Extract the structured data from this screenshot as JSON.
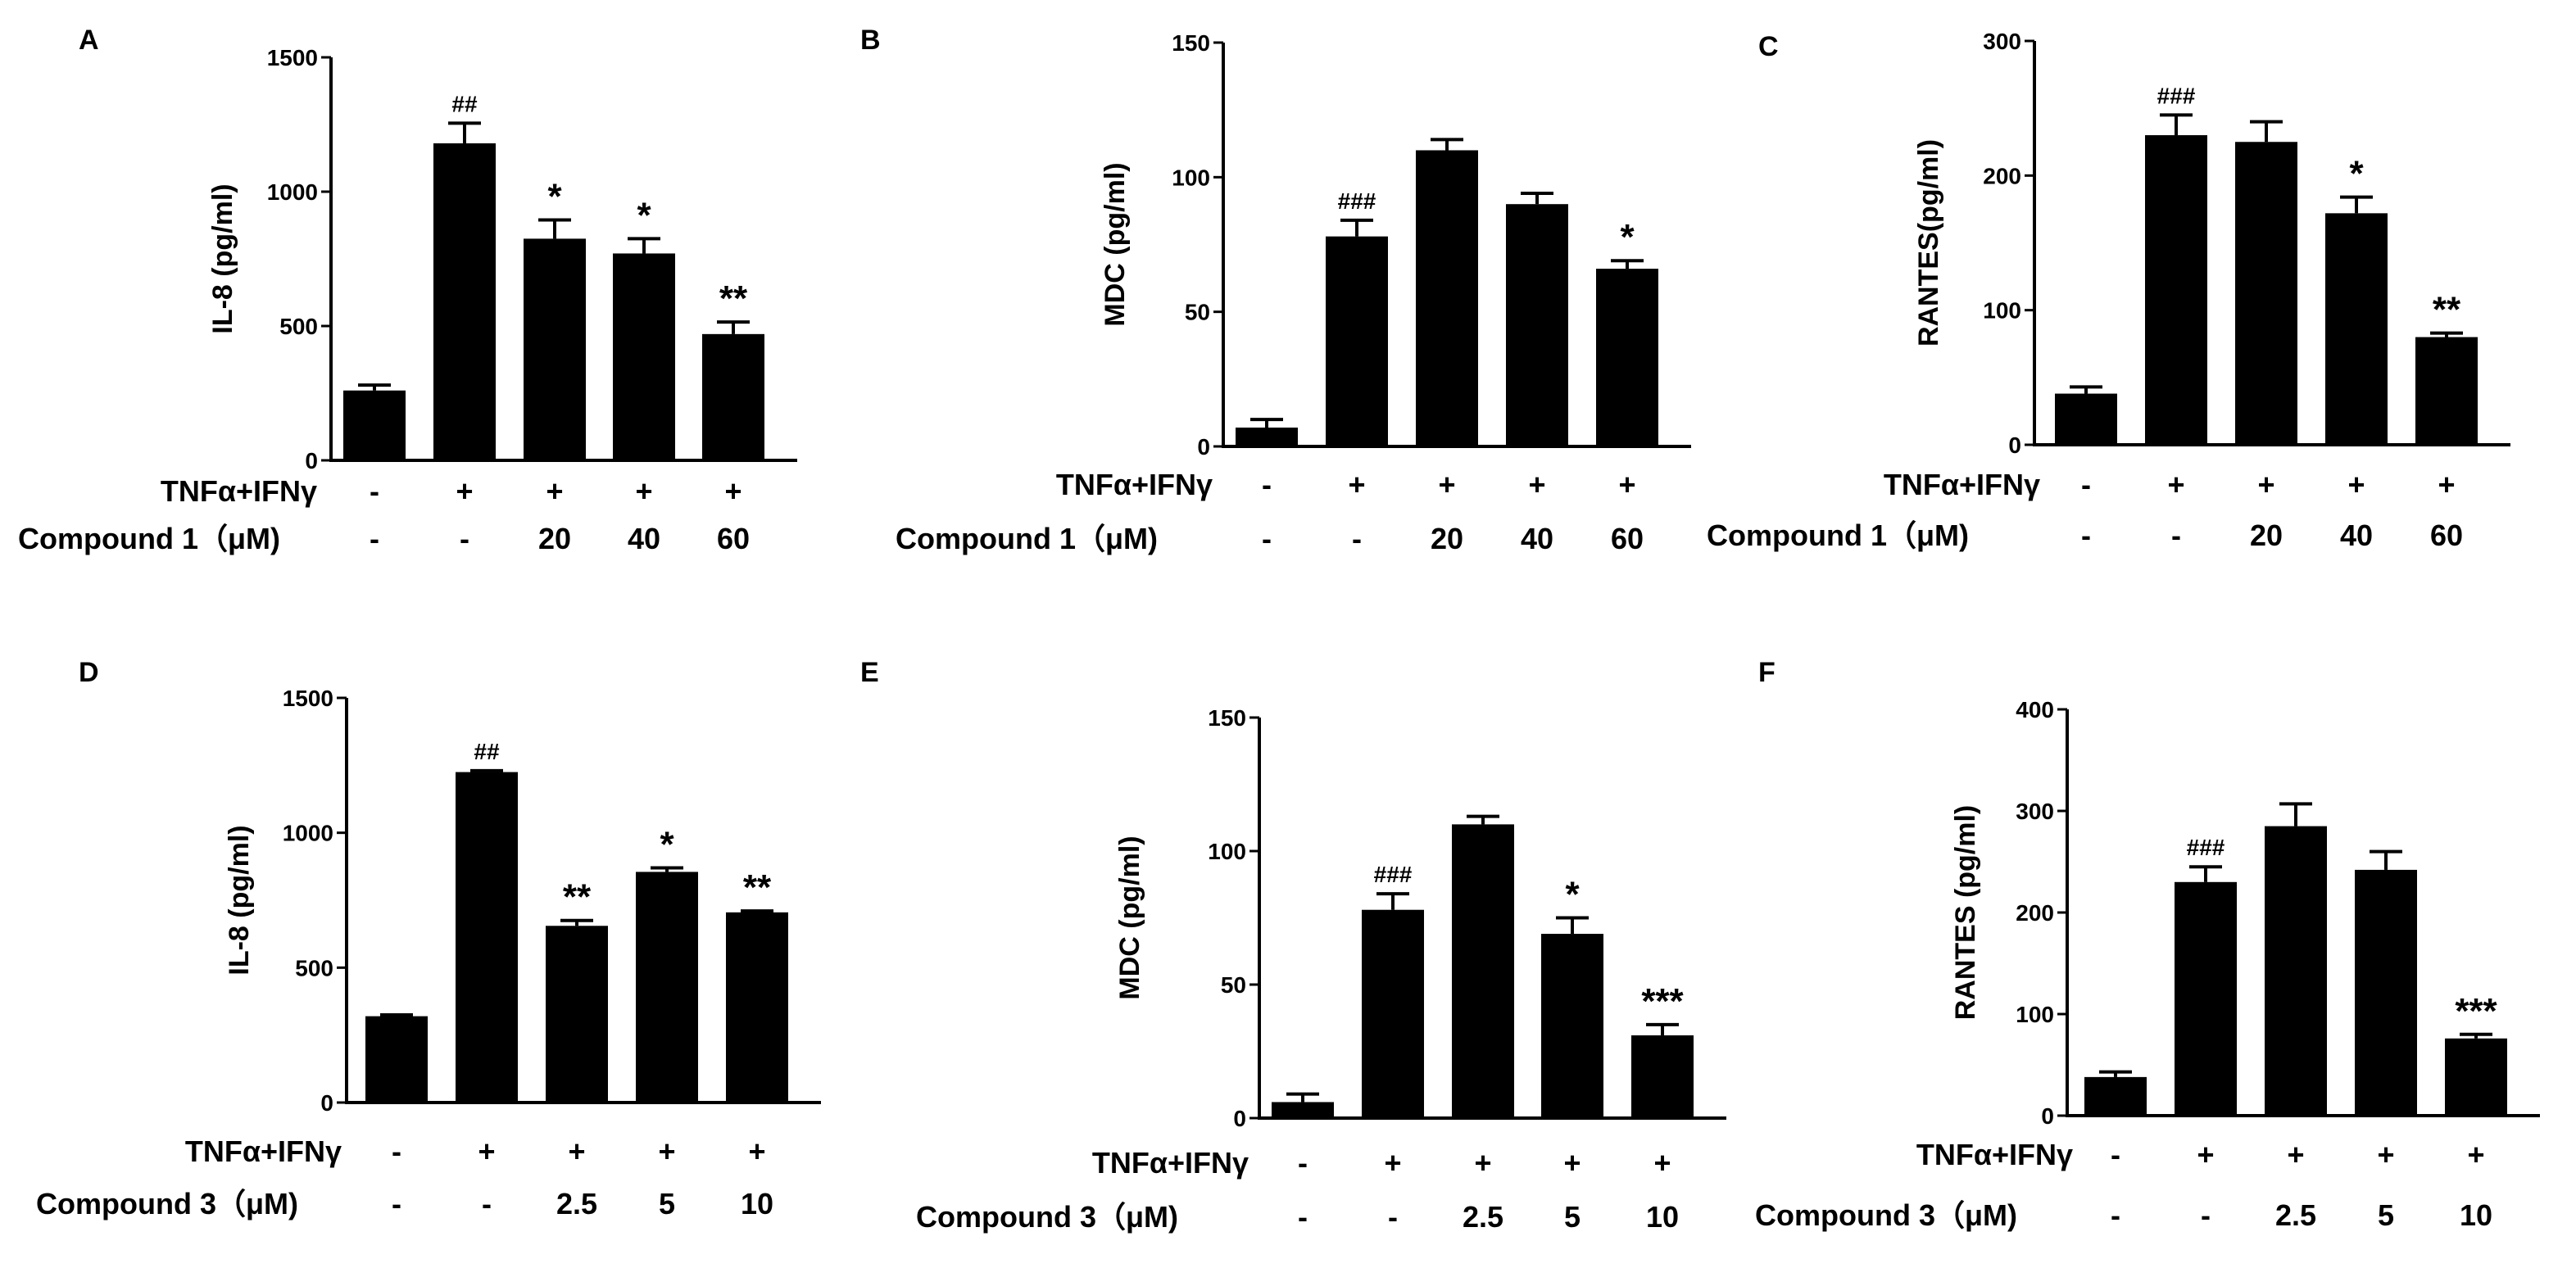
{
  "chart_data": [
    {
      "type": "bar",
      "panel": "A",
      "ylabel": "IL-8 (pg/ml)",
      "ylim": [
        0,
        1500
      ],
      "yticks": [
        "0",
        "500",
        "1000",
        "1500"
      ],
      "values": [
        260,
        1180,
        825,
        770,
        470
      ],
      "errors": [
        20,
        75,
        70,
        55,
        45
      ],
      "significance": [
        "",
        "##",
        "*",
        "*",
        "**"
      ],
      "row1": {
        "label": "TNFα+IFNγ",
        "values": [
          "-",
          "+",
          "+",
          "+",
          "+"
        ]
      },
      "row2": {
        "label": "Compound 1（μM)",
        "values": [
          "-",
          "-",
          "20",
          "40",
          "60"
        ]
      }
    },
    {
      "type": "bar",
      "panel": "B",
      "ylabel": "MDC (pg/ml)",
      "ylim": [
        0,
        150
      ],
      "yticks": [
        "0",
        "50",
        "100",
        "150"
      ],
      "values": [
        7,
        78,
        110,
        90,
        66
      ],
      "errors": [
        3,
        6,
        4,
        4,
        3
      ],
      "significance": [
        "",
        "###",
        "",
        "",
        "*"
      ],
      "row1": {
        "label": "TNFα+IFNγ",
        "values": [
          "-",
          "+",
          "+",
          "+",
          "+"
        ]
      },
      "row2": {
        "label": "Compound 1（μM)",
        "values": [
          "-",
          "-",
          "20",
          "40",
          "60"
        ]
      }
    },
    {
      "type": "bar",
      "panel": "C",
      "ylabel": "RANTES(pg/ml)",
      "ylim": [
        0,
        300
      ],
      "yticks": [
        "0",
        "100",
        "200",
        "300"
      ],
      "values": [
        38,
        230,
        225,
        172,
        80
      ],
      "errors": [
        5,
        15,
        15,
        12,
        3
      ],
      "significance": [
        "",
        "###",
        "",
        "*",
        "**"
      ],
      "row1": {
        "label": "TNFα+IFNγ",
        "values": [
          "-",
          "+",
          "+",
          "+",
          "+"
        ]
      },
      "row2": {
        "label": "Compound 1（μM)",
        "values": [
          "-",
          "-",
          "20",
          "40",
          "60"
        ]
      }
    },
    {
      "type": "bar",
      "panel": "D",
      "ylabel": "IL-8 (pg/ml)",
      "ylim": [
        0,
        1500
      ],
      "yticks": [
        "0",
        "500",
        "1000",
        "1500"
      ],
      "values": [
        320,
        1225,
        655,
        855,
        705
      ],
      "errors": [
        5,
        5,
        20,
        15,
        5
      ],
      "significance": [
        "",
        "##",
        "**",
        "*",
        "**"
      ],
      "row1": {
        "label": "TNFα+IFNγ",
        "values": [
          "-",
          "+",
          "+",
          "+",
          "+"
        ]
      },
      "row2": {
        "label": "Compound 3（μM)",
        "values": [
          "-",
          "-",
          "2.5",
          "5",
          "10"
        ]
      }
    },
    {
      "type": "bar",
      "panel": "E",
      "ylabel": "MDC (pg/ml)",
      "ylim": [
        0,
        150
      ],
      "yticks": [
        "0",
        "50",
        "100",
        "150"
      ],
      "values": [
        6,
        78,
        110,
        69,
        31
      ],
      "errors": [
        3,
        6,
        3,
        6,
        4
      ],
      "significance": [
        "",
        "###",
        "",
        "*",
        "***"
      ],
      "row1": {
        "label": "TNFα+IFNγ",
        "values": [
          "-",
          "+",
          "+",
          "+",
          "+"
        ]
      },
      "row2": {
        "label": "Compound 3（μM)",
        "values": [
          "-",
          "-",
          "2.5",
          "5",
          "10"
        ]
      }
    },
    {
      "type": "bar",
      "panel": "F",
      "ylabel": "RANTES (pg/ml)",
      "ylim": [
        0,
        400
      ],
      "yticks": [
        "0",
        "100",
        "200",
        "300",
        "400"
      ],
      "values": [
        38,
        230,
        285,
        242,
        76
      ],
      "errors": [
        5,
        15,
        22,
        18,
        4
      ],
      "significance": [
        "",
        "###",
        "",
        "",
        "***"
      ],
      "row1": {
        "label": "TNFα+IFNγ",
        "values": [
          "-",
          "+",
          "+",
          "+",
          "+"
        ]
      },
      "row2": {
        "label": "Compound 3（μM)",
        "values": [
          "-",
          "-",
          "2.5",
          "5",
          "10"
        ]
      }
    }
  ]
}
